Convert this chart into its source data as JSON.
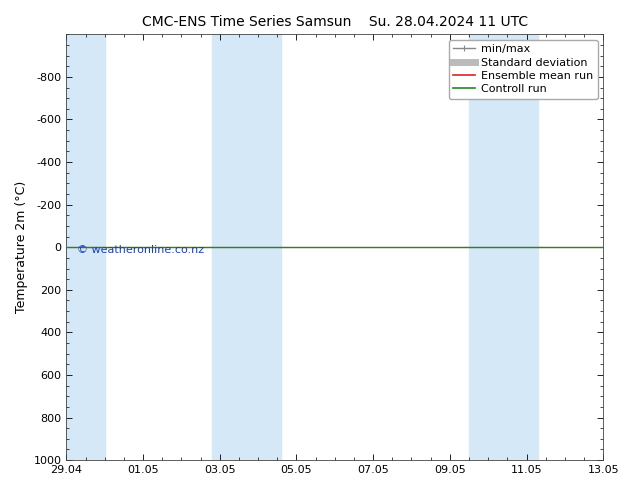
{
  "title_left": "CMC-ENS Time Series Samsun",
  "title_right": "Su. 28.04.2024 11 UTC",
  "ylabel": "Temperature 2m (°C)",
  "ylim_bottom": 1000,
  "ylim_top": -1000,
  "yticks": [
    -800,
    -600,
    -400,
    -200,
    0,
    200,
    400,
    600,
    800,
    1000
  ],
  "xtick_labels": [
    "29.04",
    "01.05",
    "03.05",
    "05.05",
    "07.05",
    "09.05",
    "11.05",
    "13.05"
  ],
  "xmin": 0,
  "xmax": 14,
  "blue_bands": [
    [
      0,
      1.0
    ],
    [
      3.8,
      4.7
    ],
    [
      4.7,
      5.6
    ],
    [
      10.5,
      11.4
    ],
    [
      11.4,
      12.3
    ]
  ],
  "green_line_y": 0,
  "red_line_y": 0,
  "watermark": "© weatheronline.co.nz",
  "watermark_color": "#1a3fc4",
  "watermark_font_size": 8,
  "background_color": "#ffffff",
  "plot_bg_color": "#ffffff",
  "band_color": "#d4e8f8",
  "legend_items": [
    "min/max",
    "Standard deviation",
    "Ensemble mean run",
    "Controll run"
  ],
  "legend_line_colors": [
    "#888888",
    "#bbbbbb",
    "#dd2222",
    "#228822"
  ],
  "green_line_color": "#228822",
  "red_line_color": "#dd2222",
  "title_fontsize": 10,
  "axis_label_fontsize": 9,
  "tick_fontsize": 8,
  "legend_fontsize": 8
}
